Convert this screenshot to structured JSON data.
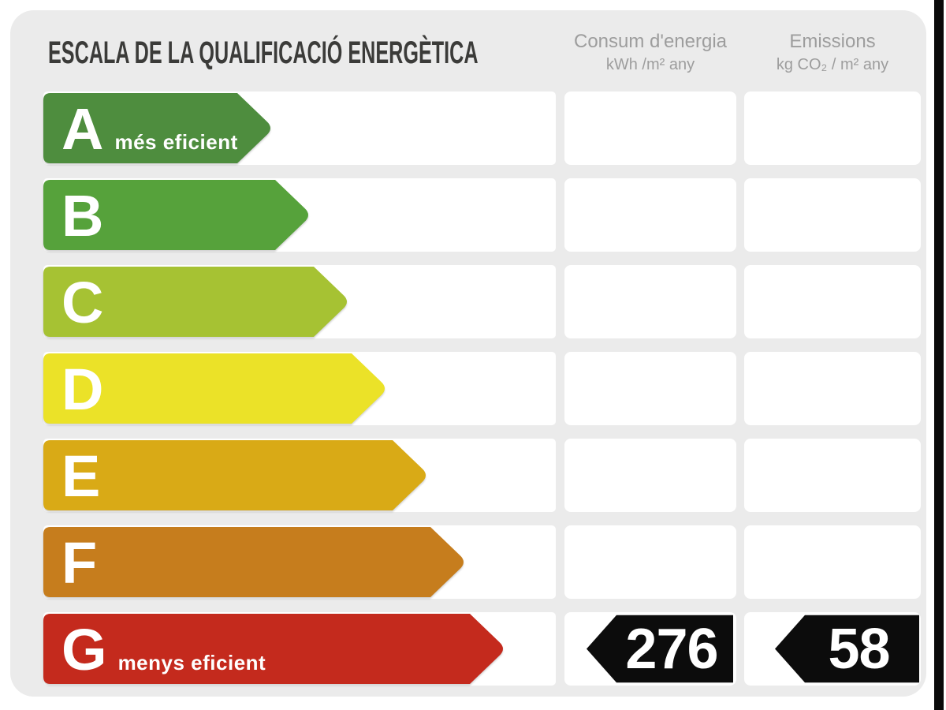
{
  "title": "ESCALA DE LA QUALIFICACIÓ ENERGÈTICA",
  "columns": {
    "consum": {
      "label": "Consum d'energia",
      "unit": "kWh /m²  any"
    },
    "emissions": {
      "label": "Emissions",
      "unit": "kg CO₂ / m²  any"
    }
  },
  "scale": {
    "rows": [
      {
        "letter": "A",
        "label": "més eficient",
        "color": "#4e8d3e",
        "bar_end": 335
      },
      {
        "letter": "B",
        "label": "",
        "color": "#56a23b",
        "bar_end": 383
      },
      {
        "letter": "C",
        "label": "",
        "color": "#a6c233",
        "bar_end": 432
      },
      {
        "letter": "D",
        "label": "",
        "color": "#ebe228",
        "bar_end": 480
      },
      {
        "letter": "E",
        "label": "",
        "color": "#d9aa16",
        "bar_end": 532
      },
      {
        "letter": "F",
        "label": "",
        "color": "#c67d1d",
        "bar_end": 580
      },
      {
        "letter": "G",
        "label": "menys eficient",
        "color": "#c42a1d",
        "bar_end": 630
      }
    ],
    "rating": {
      "letter": "G",
      "consum_value": "276",
      "emissions_value": "58"
    }
  },
  "chart_data": {
    "type": "bar",
    "title": "ESCALA DE LA QUALIFICACIÓ ENERGÈTICA",
    "categories": [
      "A",
      "B",
      "C",
      "D",
      "E",
      "F",
      "G"
    ],
    "series": [
      {
        "name": "bar_length_px",
        "values": [
          335,
          383,
          432,
          480,
          532,
          580,
          630
        ]
      }
    ],
    "bar_colors": [
      "#4e8d3e",
      "#56a23b",
      "#a6c233",
      "#ebe228",
      "#d9aa16",
      "#c67d1d",
      "#c42a1d"
    ],
    "annotations": [
      "A = més eficient",
      "G = menys eficient"
    ],
    "rating": {
      "class": "G",
      "consum_kwh_m2_any": 276,
      "emissions_kg_co2_m2_any": 58
    },
    "columns": [
      "Consum d'energia (kWh /m² any)",
      "Emissions (kg CO₂ / m² any)"
    ]
  }
}
